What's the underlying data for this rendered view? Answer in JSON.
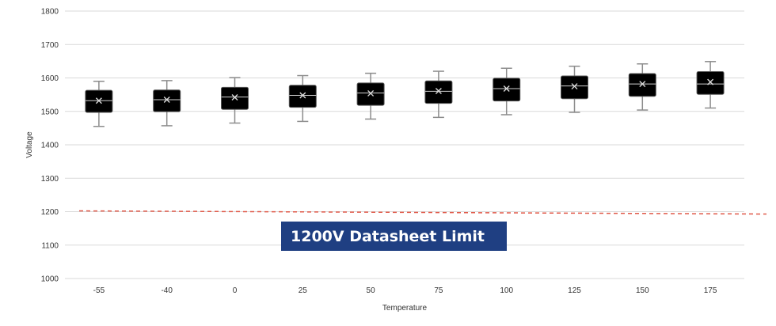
{
  "chart_data": {
    "type": "box",
    "xlabel": "Temperature",
    "ylabel": "Voltage",
    "ylim": [
      1000,
      1800
    ],
    "yticks": [
      1000,
      1100,
      1200,
      1300,
      1400,
      1500,
      1600,
      1700,
      1800
    ],
    "grid": "horizontal",
    "categories": [
      "-55",
      "-40",
      "0",
      "25",
      "50",
      "75",
      "100",
      "125",
      "150",
      "175"
    ],
    "boxes": [
      {
        "min": 1455,
        "q1": 1497,
        "median": 1532,
        "q3": 1563,
        "max": 1590,
        "mean": 1532
      },
      {
        "min": 1457,
        "q1": 1499,
        "median": 1535,
        "q3": 1564,
        "max": 1592,
        "mean": 1535
      },
      {
        "min": 1465,
        "q1": 1506,
        "median": 1543,
        "q3": 1572,
        "max": 1601,
        "mean": 1542
      },
      {
        "min": 1470,
        "q1": 1512,
        "median": 1548,
        "q3": 1578,
        "max": 1607,
        "mean": 1548
      },
      {
        "min": 1477,
        "q1": 1518,
        "median": 1555,
        "q3": 1585,
        "max": 1614,
        "mean": 1554
      },
      {
        "min": 1482,
        "q1": 1524,
        "median": 1560,
        "q3": 1591,
        "max": 1620,
        "mean": 1561
      },
      {
        "min": 1490,
        "q1": 1531,
        "median": 1568,
        "q3": 1599,
        "max": 1629,
        "mean": 1568
      },
      {
        "min": 1497,
        "q1": 1538,
        "median": 1576,
        "q3": 1606,
        "max": 1635,
        "mean": 1575
      },
      {
        "min": 1504,
        "q1": 1545,
        "median": 1582,
        "q3": 1613,
        "max": 1642,
        "mean": 1582
      },
      {
        "min": 1510,
        "q1": 1551,
        "median": 1582,
        "q3": 1619,
        "max": 1649,
        "mean": 1588
      }
    ],
    "reference_line": {
      "value": 1200,
      "style": "dashed",
      "color": "#e05a4a"
    },
    "annotation": {
      "text": "1200V Datasheet Limit",
      "background": "#1f3f82",
      "color": "#ffffff"
    },
    "colors": {
      "box_fill": "#000000",
      "whisker": "#8c8c8c",
      "grid": "#d9d9d9"
    }
  }
}
